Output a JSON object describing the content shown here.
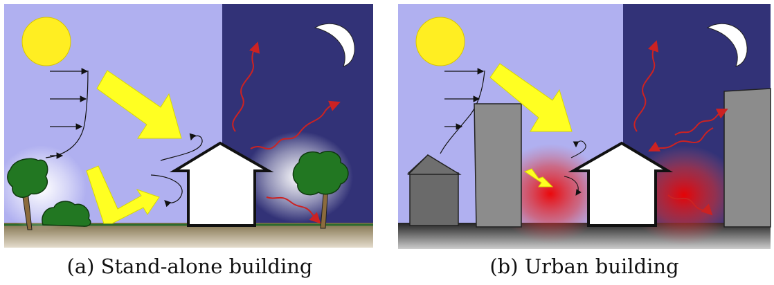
{
  "panel_a": {
    "caption": "(a) Stand-alone building"
  },
  "panel_b": {
    "caption": "(b) Urban building"
  },
  "colors": {
    "day_sky": "#b0b0f0",
    "night_sky": "#323277",
    "sun": "#ffee22",
    "radiation_arrow": "#ffff22",
    "longwave_arrow": "#cc2222",
    "tree": "#227722",
    "trunk": "#8b6b3d",
    "ground_a": "#bfb295",
    "ground_b": "#3a3a3a",
    "building_gray": "#8c8c8c",
    "heat_glow": "#ee0000"
  }
}
